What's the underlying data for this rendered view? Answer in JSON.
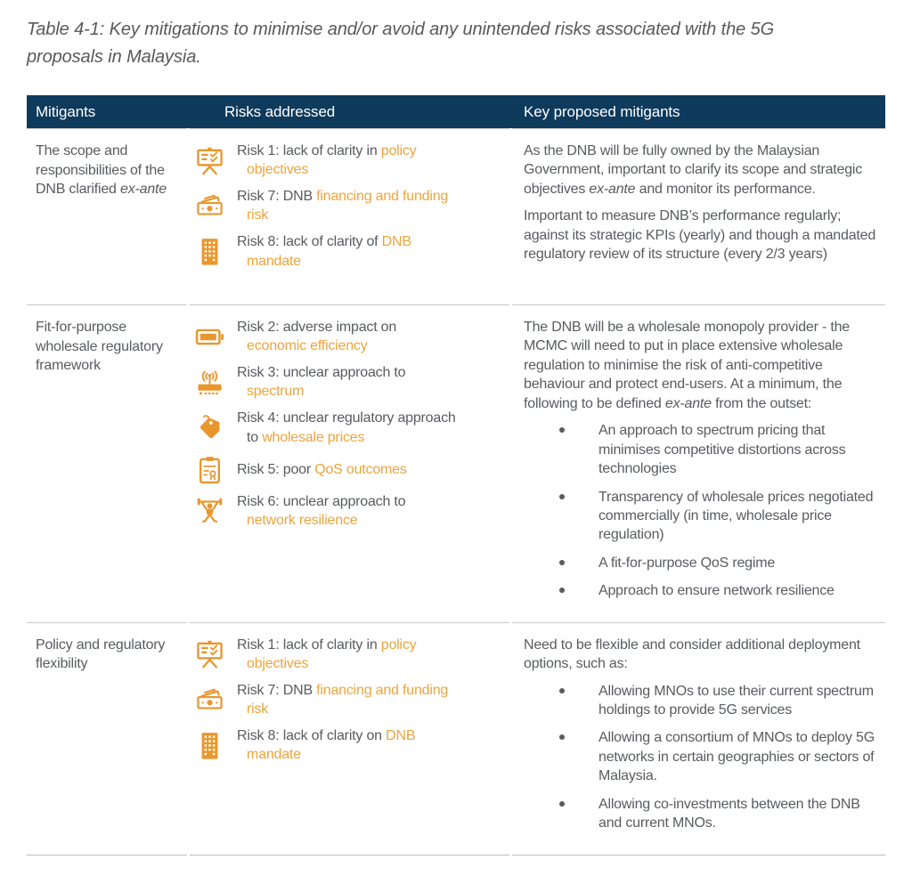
{
  "title": "Table 4-1: Key mitigations to minimise and/or avoid any unintended risks associated with the 5G proposals in Malaysia.",
  "colors": {
    "header_bg": "#0e3a5b",
    "header_text": "#ffffff",
    "body_text": "#595b5f",
    "accent_text": "#eca43c",
    "icon_orange": "#e8972f",
    "divider": "#c9c9c9"
  },
  "table": {
    "headers": [
      "Mitigants",
      "Risks addressed",
      "Key proposed mitigants"
    ],
    "rows": [
      {
        "mitigant": [
          {
            "t": "The scope and responsibilities of the DNB clarified "
          },
          {
            "t": "ex-ante",
            "i": true
          }
        ],
        "risks": [
          {
            "icon": "easel-icon",
            "label": [
              {
                "t": "Risk 1: lack of clarity in "
              },
              {
                "t": "policy objectives",
                "a": true
              }
            ]
          },
          {
            "icon": "banknote-icon",
            "label": [
              {
                "t": "Risk 7: DNB "
              },
              {
                "t": "financing and funding risk",
                "a": true
              }
            ]
          },
          {
            "icon": "building-icon",
            "label": [
              {
                "t": "Risk 8: lack of clarity of "
              },
              {
                "t": "DNB mandate",
                "a": true
              }
            ]
          }
        ],
        "blocks": [
          {
            "type": "p",
            "runs": [
              {
                "t": "As the DNB will be fully owned by the Malaysian Government, important to clarify its scope and strategic objectives "
              },
              {
                "t": "ex-ante",
                "i": true
              },
              {
                "t": " and monitor its performance."
              }
            ]
          },
          {
            "type": "p",
            "runs": [
              {
                "t": "Important to measure DNB’s performance regularly; against its strategic KPIs (yearly) and though a mandated regulatory review of its structure (every 2/3 years)"
              }
            ]
          }
        ]
      },
      {
        "mitigant": [
          {
            "t": "Fit-for-purpose wholesale regulatory framework"
          }
        ],
        "risks": [
          {
            "icon": "battery-icon",
            "label": [
              {
                "t": "Risk 2: adverse impact on "
              },
              {
                "t": "economic efficiency",
                "a": true
              }
            ]
          },
          {
            "icon": "router-icon",
            "label": [
              {
                "t": "Risk 3: unclear approach to "
              },
              {
                "t": "spectrum",
                "a": true
              }
            ]
          },
          {
            "icon": "price-tag-icon",
            "label": [
              {
                "t": "Risk 4: unclear regulatory approach to "
              },
              {
                "t": "wholesale prices",
                "a": true
              }
            ]
          },
          {
            "icon": "clipboard-icon",
            "label": [
              {
                "t": "Risk 5: poor "
              },
              {
                "t": "QoS outcomes",
                "a": true
              }
            ]
          },
          {
            "icon": "weightlifter-icon",
            "label": [
              {
                "t": "Risk 6: unclear approach to "
              },
              {
                "t": "network resilience",
                "a": true
              }
            ]
          }
        ],
        "blocks": [
          {
            "type": "p",
            "runs": [
              {
                "t": "The DNB will be a wholesale monopoly provider - the MCMC will need to put in place extensive wholesale regulation to minimise the risk of anti-competitive behaviour and protect end-users. At a minimum, the following to be defined "
              },
              {
                "t": "ex-ante",
                "i": true
              },
              {
                "t": " from the outset:"
              }
            ]
          },
          {
            "type": "bullets",
            "items": [
              [
                {
                  "t": "An approach to spectrum pricing that minimises competitive distortions across technologies"
                }
              ],
              [
                {
                  "t": "Transparency of wholesale prices negotiated commercially (in time, wholesale price regulation)"
                }
              ],
              [
                {
                  "t": "A fit-for-purpose QoS regime"
                }
              ],
              [
                {
                  "t": "Approach to ensure network resilience"
                }
              ]
            ]
          }
        ]
      },
      {
        "mitigant": [
          {
            "t": "Policy and regulatory flexibility"
          }
        ],
        "risks": [
          {
            "icon": "easel-icon",
            "label": [
              {
                "t": "Risk 1: lack of clarity in "
              },
              {
                "t": "policy objectives",
                "a": true
              }
            ]
          },
          {
            "icon": "banknote-icon",
            "label": [
              {
                "t": "Risk 7: DNB "
              },
              {
                "t": "financing and funding risk",
                "a": true
              }
            ]
          },
          {
            "icon": "building-icon",
            "label": [
              {
                "t": "Risk 8: lack of clarity on "
              },
              {
                "t": "DNB mandate",
                "a": true
              }
            ]
          }
        ],
        "blocks": [
          {
            "type": "p",
            "runs": [
              {
                "t": "Need to be flexible and consider additional deployment options, such as:"
              }
            ]
          },
          {
            "type": "bullets",
            "items": [
              [
                {
                  "t": "Allowing MNOs to use their current spectrum holdings to provide 5G services"
                }
              ],
              [
                {
                  "t": "Allowing a consortium of MNOs to deploy 5G networks in certain geographies or sectors of Malaysia."
                }
              ],
              [
                {
                  "t": "Allowing co-investments between the DNB and current MNOs."
                }
              ]
            ]
          }
        ]
      }
    ]
  }
}
